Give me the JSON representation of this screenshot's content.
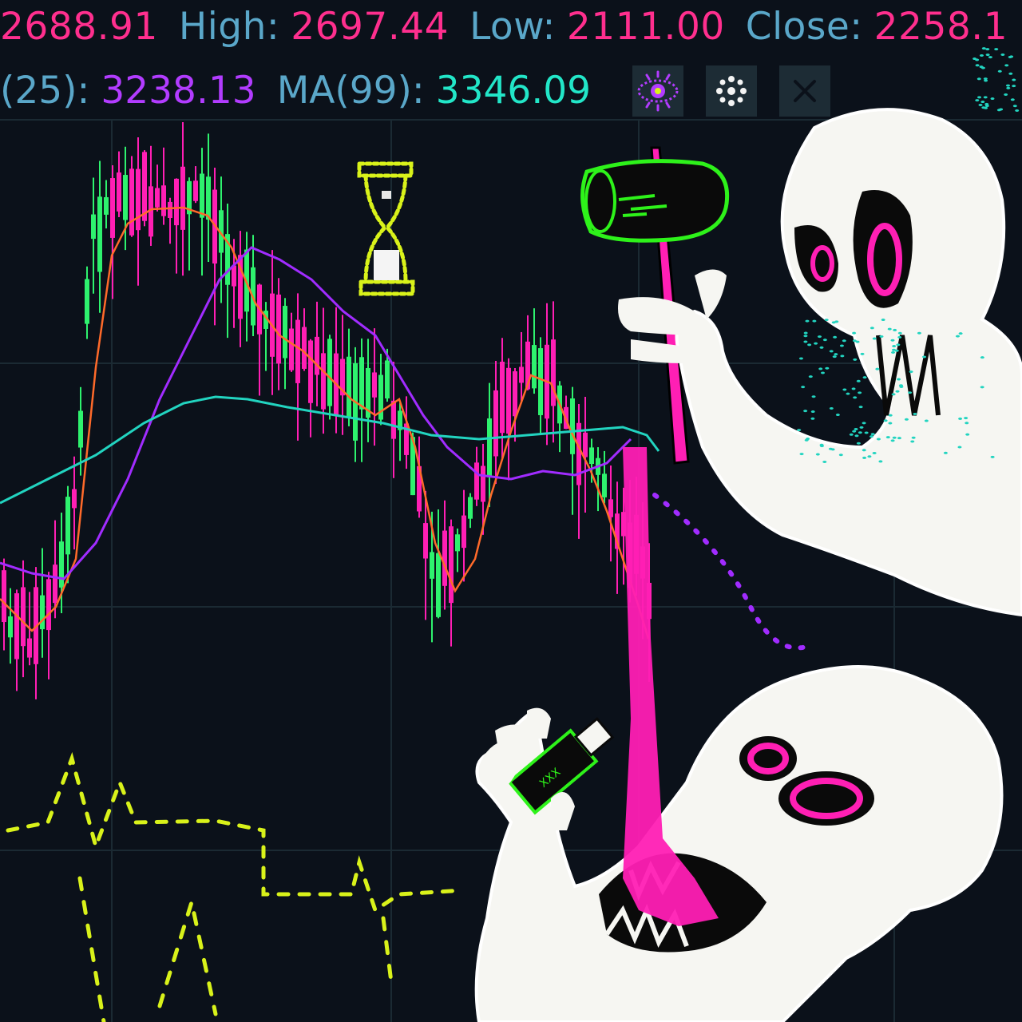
{
  "ohlc_bar": {
    "open_value": "2688.91",
    "high_label": "High:",
    "high_value": "2697.44",
    "low_label": "Low:",
    "low_value": "2111.00",
    "close_label": "Close:",
    "close_value": "2258.1"
  },
  "ma_bar": {
    "ma25_label": "(25):",
    "ma25_value": "3238.13",
    "ma99_label": "MA(99):",
    "ma99_value": "3346.09"
  },
  "toolbar": {
    "icons": [
      "eye-icon",
      "settings-icon",
      "close-icon"
    ]
  },
  "colors": {
    "background": "#0b111a",
    "up_candle": "#2ef26e",
    "down_candle": "#ff1fb4",
    "ma7": "#ff6a2a",
    "ma25": "#a12cff",
    "ma99": "#22d4c0",
    "volume_dash": "#d9f21a",
    "label": "#5aa7c9"
  },
  "illustration": {
    "hourglass": "hourglass-icon",
    "hammer": "hammer-icon",
    "usb_stick_text": "XXX",
    "creatures": [
      "skull-creature-upper",
      "skull-creature-lower"
    ]
  }
}
